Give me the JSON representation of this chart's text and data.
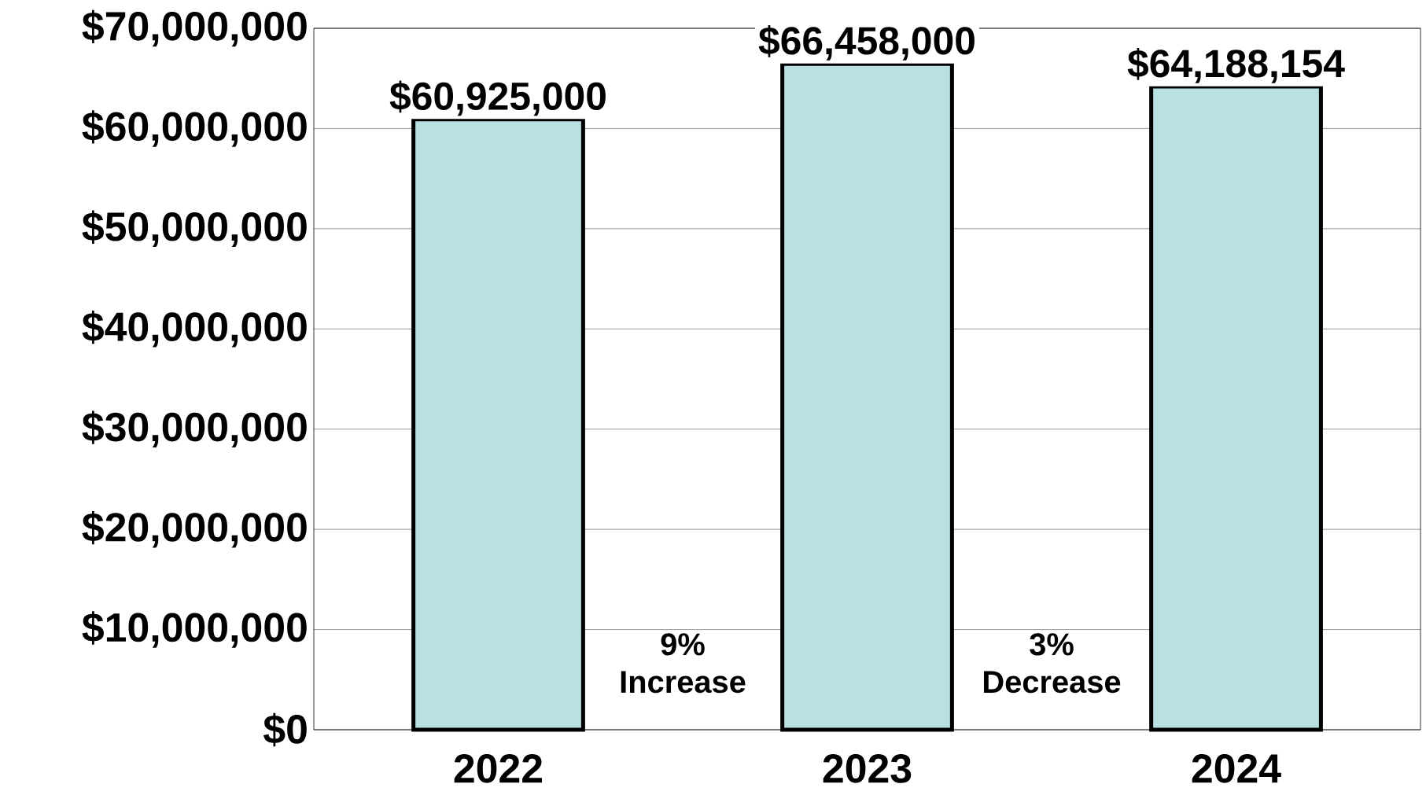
{
  "chart_data": {
    "type": "bar",
    "categories": [
      "2022",
      "2023",
      "2024"
    ],
    "values": [
      60925000,
      66458000,
      64188154
    ],
    "color": "#b9e0e3",
    "value_labels": [
      "$60,925,000",
      "$66,458,000",
      "$64,188,154"
    ],
    "ylim": [
      0,
      70000000
    ],
    "yticks": [
      {
        "value": 0,
        "label": "$0"
      },
      {
        "value": 10000000,
        "label": "$10,000,000"
      },
      {
        "value": 20000000,
        "label": "$20,000,000"
      },
      {
        "value": 30000000,
        "label": "$30,000,000"
      },
      {
        "value": 40000000,
        "label": "$40,000,000"
      },
      {
        "value": 50000000,
        "label": "$50,000,000"
      },
      {
        "value": 60000000,
        "label": "$60,000,000"
      },
      {
        "value": 70000000,
        "label": "$70,000,000"
      }
    ],
    "annotations": [
      "9% Increase",
      "3% Decrease"
    ],
    "grid": "y"
  }
}
